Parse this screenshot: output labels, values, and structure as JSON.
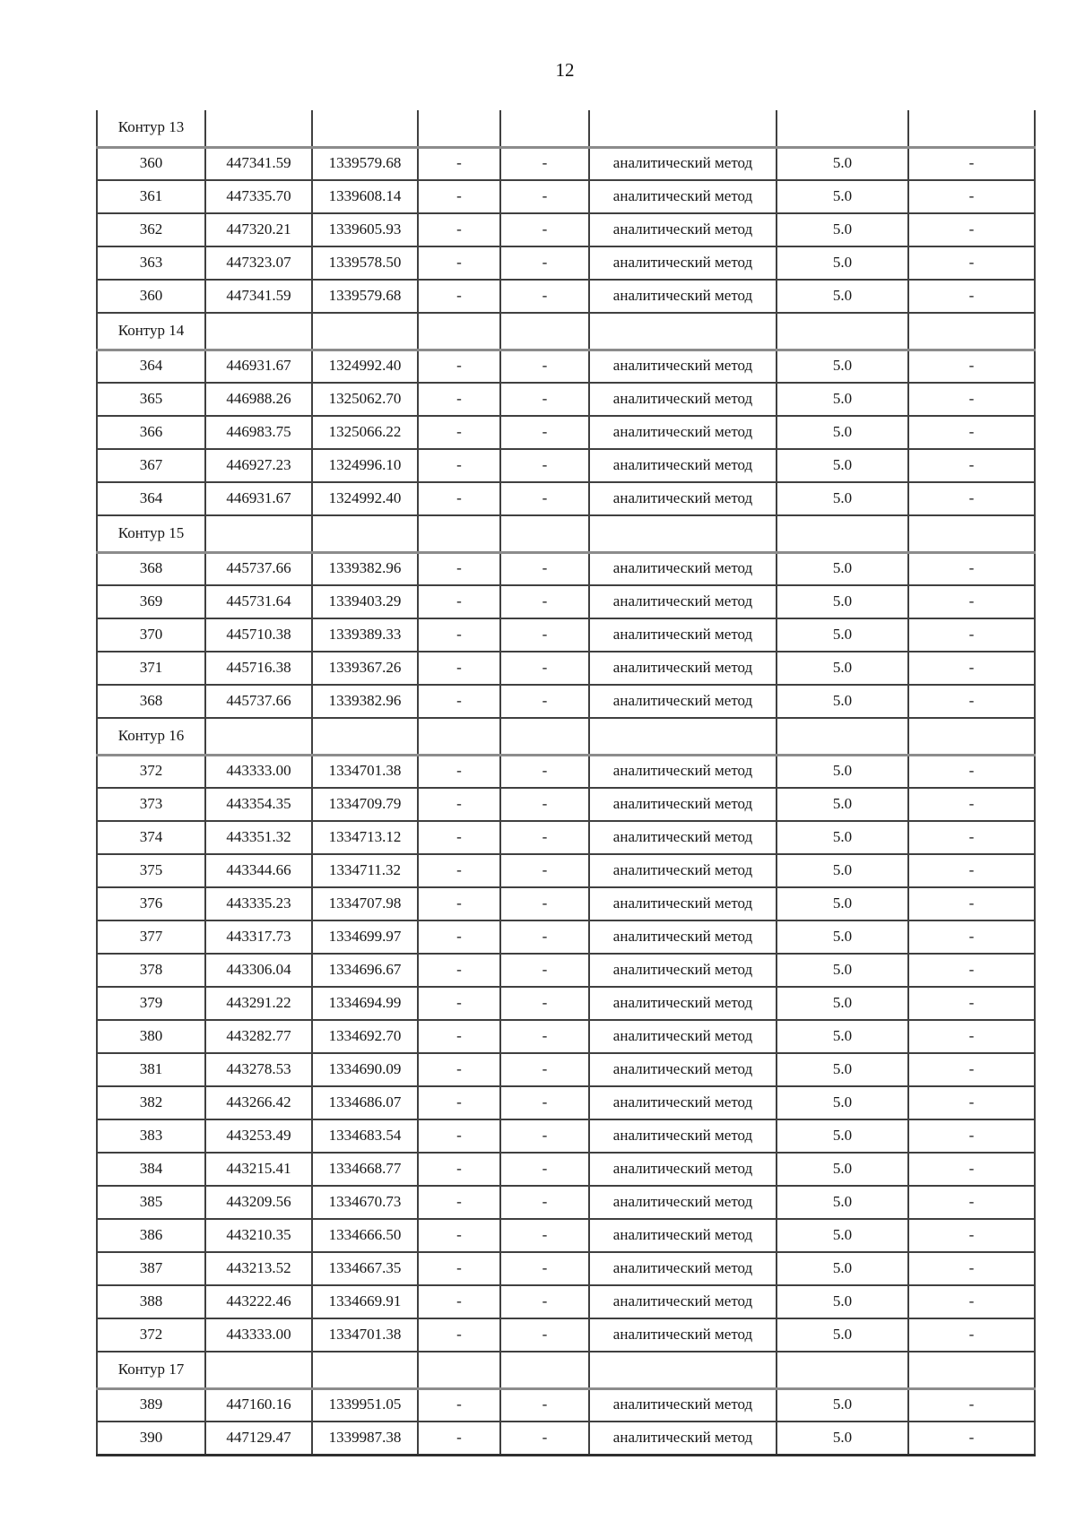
{
  "page": {
    "number": "12"
  },
  "table": {
    "sections": [
      {
        "title": "Контур 13",
        "rows": [
          [
            "360",
            "447341.59",
            "1339579.68",
            "-",
            "-",
            "аналитический метод",
            "5.0",
            "-"
          ],
          [
            "361",
            "447335.70",
            "1339608.14",
            "-",
            "-",
            "аналитический метод",
            "5.0",
            "-"
          ],
          [
            "362",
            "447320.21",
            "1339605.93",
            "-",
            "-",
            "аналитический метод",
            "5.0",
            "-"
          ],
          [
            "363",
            "447323.07",
            "1339578.50",
            "-",
            "-",
            "аналитический метод",
            "5.0",
            "-"
          ],
          [
            "360",
            "447341.59",
            "1339579.68",
            "-",
            "-",
            "аналитический метод",
            "5.0",
            "-"
          ]
        ]
      },
      {
        "title": "Контур 14",
        "rows": [
          [
            "364",
            "446931.67",
            "1324992.40",
            "-",
            "-",
            "аналитический метод",
            "5.0",
            "-"
          ],
          [
            "365",
            "446988.26",
            "1325062.70",
            "-",
            "-",
            "аналитический метод",
            "5.0",
            "-"
          ],
          [
            "366",
            "446983.75",
            "1325066.22",
            "-",
            "-",
            "аналитический метод",
            "5.0",
            "-"
          ],
          [
            "367",
            "446927.23",
            "1324996.10",
            "-",
            "-",
            "аналитический метод",
            "5.0",
            "-"
          ],
          [
            "364",
            "446931.67",
            "1324992.40",
            "-",
            "-",
            "аналитический метод",
            "5.0",
            "-"
          ]
        ]
      },
      {
        "title": "Контур 15",
        "rows": [
          [
            "368",
            "445737.66",
            "1339382.96",
            "-",
            "-",
            "аналитический метод",
            "5.0",
            "-"
          ],
          [
            "369",
            "445731.64",
            "1339403.29",
            "-",
            "-",
            "аналитический метод",
            "5.0",
            "-"
          ],
          [
            "370",
            "445710.38",
            "1339389.33",
            "-",
            "-",
            "аналитический метод",
            "5.0",
            "-"
          ],
          [
            "371",
            "445716.38",
            "1339367.26",
            "-",
            "-",
            "аналитический метод",
            "5.0",
            "-"
          ],
          [
            "368",
            "445737.66",
            "1339382.96",
            "-",
            "-",
            "аналитический метод",
            "5.0",
            "-"
          ]
        ]
      },
      {
        "title": "Контур 16",
        "rows": [
          [
            "372",
            "443333.00",
            "1334701.38",
            "-",
            "-",
            "аналитический метод",
            "5.0",
            "-"
          ],
          [
            "373",
            "443354.35",
            "1334709.79",
            "-",
            "-",
            "аналитический метод",
            "5.0",
            "-"
          ],
          [
            "374",
            "443351.32",
            "1334713.12",
            "-",
            "-",
            "аналитический метод",
            "5.0",
            "-"
          ],
          [
            "375",
            "443344.66",
            "1334711.32",
            "-",
            "-",
            "аналитический метод",
            "5.0",
            "-"
          ],
          [
            "376",
            "443335.23",
            "1334707.98",
            "-",
            "-",
            "аналитический метод",
            "5.0",
            "-"
          ],
          [
            "377",
            "443317.73",
            "1334699.97",
            "-",
            "-",
            "аналитический метод",
            "5.0",
            "-"
          ],
          [
            "378",
            "443306.04",
            "1334696.67",
            "-",
            "-",
            "аналитический метод",
            "5.0",
            "-"
          ],
          [
            "379",
            "443291.22",
            "1334694.99",
            "-",
            "-",
            "аналитический метод",
            "5.0",
            "-"
          ],
          [
            "380",
            "443282.77",
            "1334692.70",
            "-",
            "-",
            "аналитический метод",
            "5.0",
            "-"
          ],
          [
            "381",
            "443278.53",
            "1334690.09",
            "-",
            "-",
            "аналитический метод",
            "5.0",
            "-"
          ],
          [
            "382",
            "443266.42",
            "1334686.07",
            "-",
            "-",
            "аналитический метод",
            "5.0",
            "-"
          ],
          [
            "383",
            "443253.49",
            "1334683.54",
            "-",
            "-",
            "аналитический метод",
            "5.0",
            "-"
          ],
          [
            "384",
            "443215.41",
            "1334668.77",
            "-",
            "-",
            "аналитический метод",
            "5.0",
            "-"
          ],
          [
            "385",
            "443209.56",
            "1334670.73",
            "-",
            "-",
            "аналитический метод",
            "5.0",
            "-"
          ],
          [
            "386",
            "443210.35",
            "1334666.50",
            "-",
            "-",
            "аналитический метод",
            "5.0",
            "-"
          ],
          [
            "387",
            "443213.52",
            "1334667.35",
            "-",
            "-",
            "аналитический метод",
            "5.0",
            "-"
          ],
          [
            "388",
            "443222.46",
            "1334669.91",
            "-",
            "-",
            "аналитический метод",
            "5.0",
            "-"
          ],
          [
            "372",
            "443333.00",
            "1334701.38",
            "-",
            "-",
            "аналитический метод",
            "5.0",
            "-"
          ]
        ]
      },
      {
        "title": "Контур 17",
        "rows": [
          [
            "389",
            "447160.16",
            "1339951.05",
            "-",
            "-",
            "аналитический метод",
            "5.0",
            "-"
          ],
          [
            "390",
            "447129.47",
            "1339987.38",
            "-",
            "-",
            "аналитический метод",
            "5.0",
            "-"
          ]
        ]
      }
    ]
  }
}
